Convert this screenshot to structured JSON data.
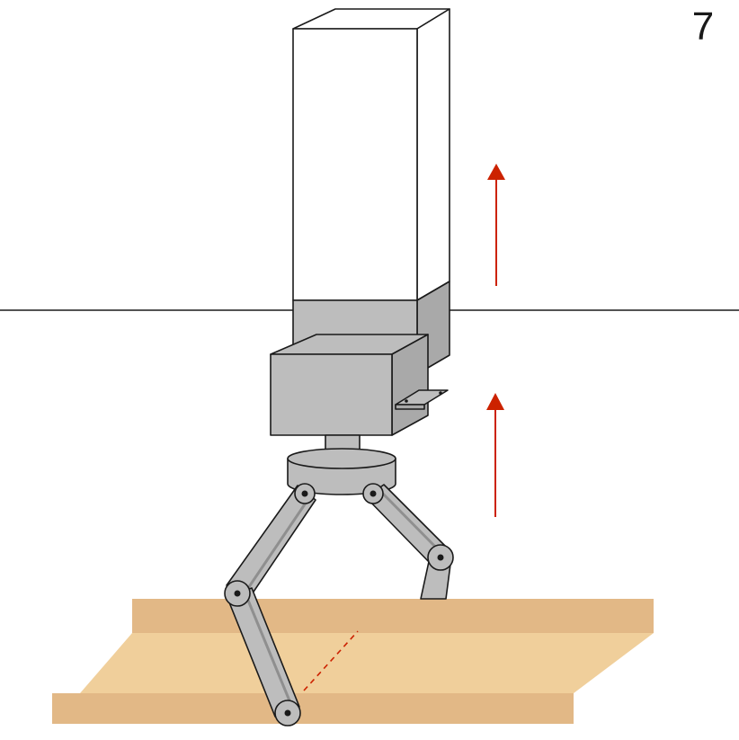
{
  "step_number": "7",
  "colors": {
    "body_white": "#ffffff",
    "metal": "#bdbdbd",
    "metal_side": "#a9a9a9",
    "metal_dark": "#8f8f8f",
    "wood_top": "#f0cf9b",
    "wood_edge": "#e2b886",
    "arrow": "#cc2200",
    "outline": "#1a1a1a",
    "horizon": "#1a1a1a",
    "contact_line": "#cc2200"
  },
  "icons": {
    "upward_arrow": "up-arrow-icon",
    "joint": "pivot-joint-icon"
  },
  "motion": {
    "direction": "up"
  }
}
